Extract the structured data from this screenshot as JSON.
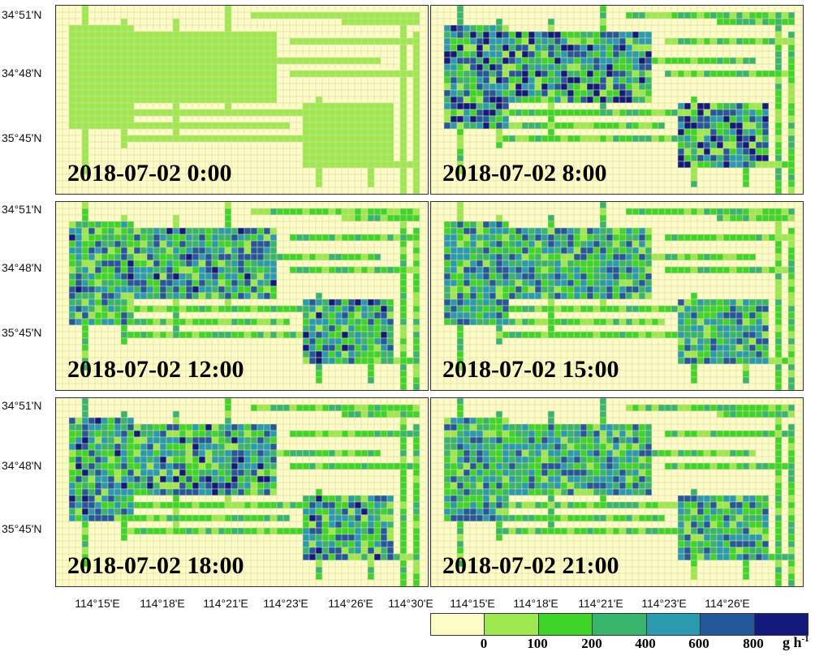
{
  "panels": [
    {
      "label": "2018-07-02 0:00",
      "intensity": 0.0
    },
    {
      "label": "2018-07-02 8:00",
      "intensity": 1.0
    },
    {
      "label": "2018-07-02 12:00",
      "intensity": 0.75
    },
    {
      "label": "2018-07-02 15:00",
      "intensity": 0.6
    },
    {
      "label": "2018-07-02 18:00",
      "intensity": 0.8
    },
    {
      "label": "2018-07-02 21:00",
      "intensity": 0.6
    }
  ],
  "y_axis": {
    "labels": [
      "34°51'N",
      "34°48'N",
      "35°45'N"
    ]
  },
  "x_axis": {
    "labels_left": [
      "114°15'E",
      "114°18'E",
      "114°21'E",
      "114°23'E",
      "114°26'E",
      "114°30'E"
    ],
    "labels_right": [
      "114°15'E",
      "114°18'E",
      "114°21'E",
      "114°23'E",
      "114°26'E"
    ]
  },
  "legend": {
    "colors": [
      "#fdfbc6",
      "#9ce84e",
      "#3ed42a",
      "#38b46c",
      "#2a9bae",
      "#25589a",
      "#141a7c"
    ],
    "labels": [
      "0",
      "100",
      "200",
      "400",
      "600",
      "800"
    ],
    "unit": "g h-1"
  },
  "colors": {
    "background": "#fdfbc6",
    "road_low": "#9ce84e",
    "grid_line": "#dcdaa8"
  }
}
